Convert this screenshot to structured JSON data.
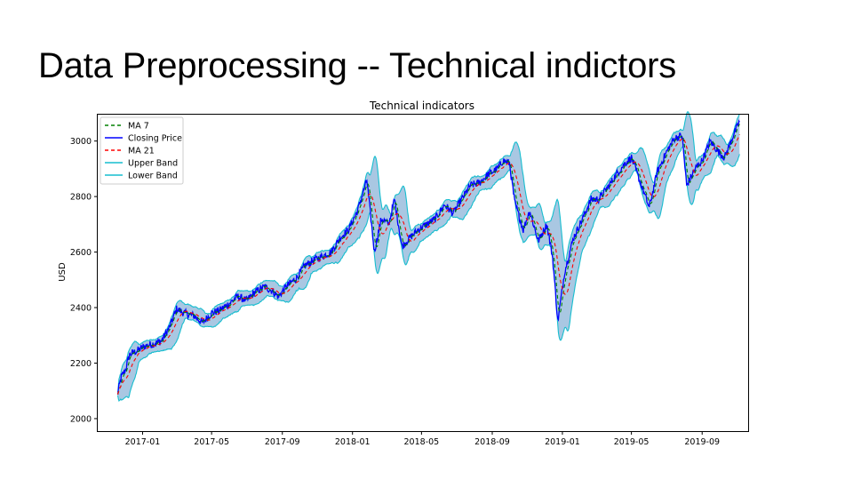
{
  "slide": {
    "title": "Data Preprocessing -- Technical indictors"
  },
  "chart_data": {
    "type": "line",
    "title": "Technical indicators",
    "xlabel": "",
    "ylabel": "USD",
    "x_ticks": [
      "2017-01",
      "2017-05",
      "2017-09",
      "2018-01",
      "2018-05",
      "2018-09",
      "2019-01",
      "2019-05",
      "2019-09"
    ],
    "y_ticks": [
      2000,
      2200,
      2400,
      2600,
      2800,
      3000
    ],
    "xlim": [
      "2016-10-15",
      "2019-11-20"
    ],
    "ylim": [
      1955,
      3095
    ],
    "grid": false,
    "legend_position": "top-left",
    "band_fill_color": "#a9c7e2",
    "anchor_points": [
      [
        "2016-11-18",
        2085
      ],
      [
        "2016-11-25",
        2150
      ],
      [
        "2016-12-02",
        2175
      ],
      [
        "2016-12-09",
        2230
      ],
      [
        "2016-12-23",
        2245
      ],
      [
        "2017-01-06",
        2262
      ],
      [
        "2017-01-20",
        2270
      ],
      [
        "2017-02-03",
        2280
      ],
      [
        "2017-02-17",
        2330
      ],
      [
        "2017-03-01",
        2395
      ],
      [
        "2017-03-15",
        2380
      ],
      [
        "2017-04-01",
        2370
      ],
      [
        "2017-04-15",
        2345
      ],
      [
        "2017-05-01",
        2380
      ],
      [
        "2017-05-15",
        2390
      ],
      [
        "2017-06-01",
        2415
      ],
      [
        "2017-06-15",
        2440
      ],
      [
        "2017-07-01",
        2425
      ],
      [
        "2017-07-15",
        2455
      ],
      [
        "2017-08-01",
        2475
      ],
      [
        "2017-08-15",
        2460
      ],
      [
        "2017-08-25",
        2440
      ],
      [
        "2017-09-10",
        2480
      ],
      [
        "2017-09-25",
        2505
      ],
      [
        "2017-10-10",
        2550
      ],
      [
        "2017-10-25",
        2570
      ],
      [
        "2017-11-10",
        2585
      ],
      [
        "2017-11-25",
        2600
      ],
      [
        "2017-12-10",
        2650
      ],
      [
        "2017-12-25",
        2680
      ],
      [
        "2018-01-10",
        2750
      ],
      [
        "2018-01-26",
        2860
      ],
      [
        "2018-02-08",
        2600
      ],
      [
        "2018-02-20",
        2720
      ],
      [
        "2018-03-05",
        2700
      ],
      [
        "2018-03-15",
        2790
      ],
      [
        "2018-03-28",
        2620
      ],
      [
        "2018-04-10",
        2650
      ],
      [
        "2018-04-25",
        2680
      ],
      [
        "2018-05-10",
        2700
      ],
      [
        "2018-05-25",
        2720
      ],
      [
        "2018-06-10",
        2770
      ],
      [
        "2018-06-25",
        2740
      ],
      [
        "2018-07-10",
        2790
      ],
      [
        "2018-07-25",
        2840
      ],
      [
        "2018-08-10",
        2850
      ],
      [
        "2018-08-25",
        2880
      ],
      [
        "2018-09-10",
        2900
      ],
      [
        "2018-09-20",
        2930
      ],
      [
        "2018-10-01",
        2920
      ],
      [
        "2018-10-10",
        2780
      ],
      [
        "2018-10-25",
        2680
      ],
      [
        "2018-11-05",
        2750
      ],
      [
        "2018-11-20",
        2640
      ],
      [
        "2018-12-05",
        2700
      ],
      [
        "2018-12-15",
        2580
      ],
      [
        "2018-12-24",
        2350
      ],
      [
        "2019-01-05",
        2530
      ],
      [
        "2019-01-20",
        2650
      ],
      [
        "2019-02-05",
        2720
      ],
      [
        "2019-02-20",
        2790
      ],
      [
        "2019-03-05",
        2790
      ],
      [
        "2019-03-20",
        2830
      ],
      [
        "2019-04-05",
        2880
      ],
      [
        "2019-04-20",
        2920
      ],
      [
        "2019-05-01",
        2940
      ],
      [
        "2019-05-15",
        2860
      ],
      [
        "2019-06-01",
        2760
      ],
      [
        "2019-06-15",
        2890
      ],
      [
        "2019-07-01",
        2960
      ],
      [
        "2019-07-15",
        3010
      ],
      [
        "2019-07-28",
        3020
      ],
      [
        "2019-08-05",
        2840
      ],
      [
        "2019-08-20",
        2900
      ],
      [
        "2019-09-01",
        2930
      ],
      [
        "2019-09-15",
        3000
      ],
      [
        "2019-09-30",
        2960
      ],
      [
        "2019-10-10",
        2940
      ],
      [
        "2019-10-25",
        3020
      ],
      [
        "2019-11-05",
        3070
      ]
    ],
    "series": [
      {
        "name": "MA 7",
        "color": "#008000",
        "style": "dashed"
      },
      {
        "name": "Closing Price",
        "color": "#0000ff",
        "style": "solid"
      },
      {
        "name": "MA 21",
        "color": "#ff0000",
        "style": "dashed"
      },
      {
        "name": "Upper Band",
        "color": "#17becf",
        "style": "solid"
      },
      {
        "name": "Lower Band",
        "color": "#17becf",
        "style": "solid"
      }
    ]
  }
}
